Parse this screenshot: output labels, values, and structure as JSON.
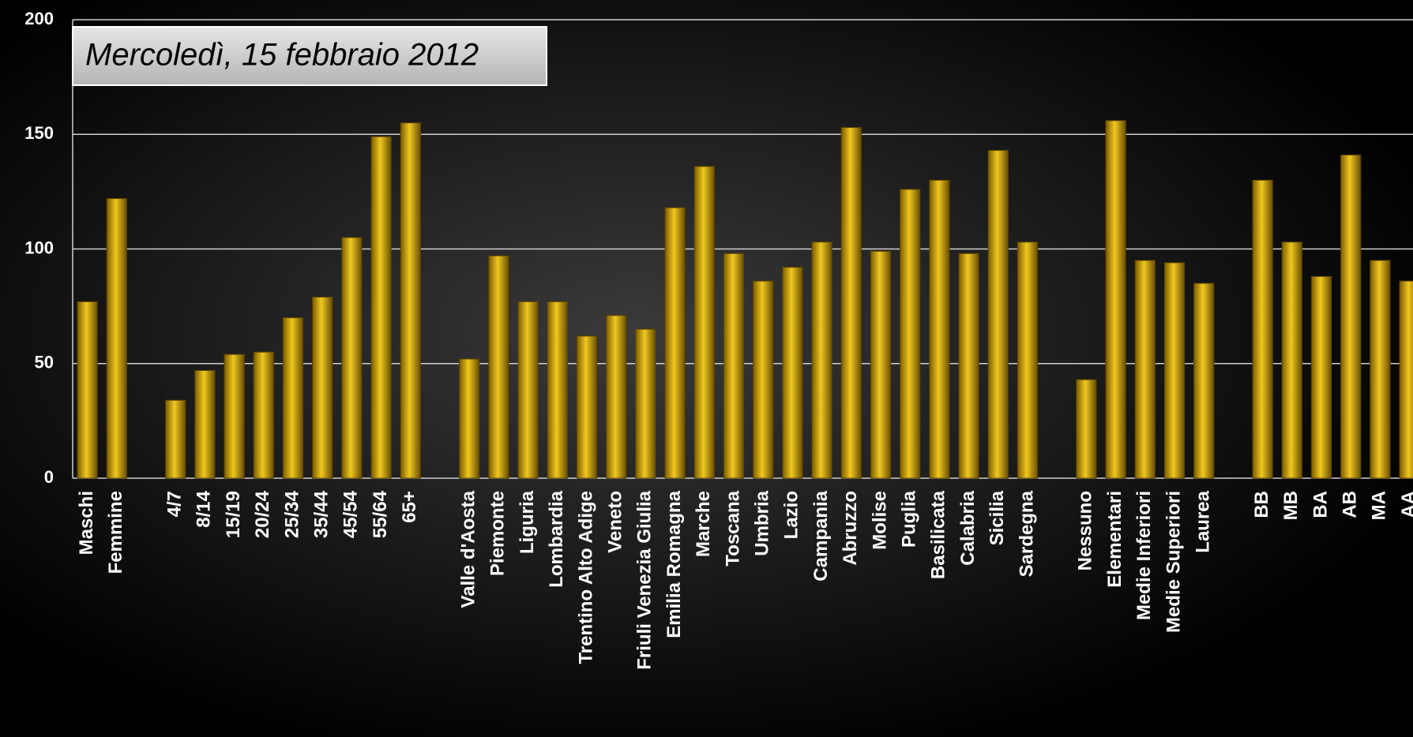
{
  "chart_data": {
    "type": "bar",
    "title": "Mercoledì, 15 febbraio 2012",
    "categories": [
      "Maschi",
      "Femmine",
      null,
      "4/7",
      "8/14",
      "15/19",
      "20/24",
      "25/34",
      "35/44",
      "45/54",
      "55/64",
      "65+",
      null,
      "Valle d'Aosta",
      "Piemonte",
      "Liguria",
      "Lombardia",
      "Trentino Alto Adige",
      "Veneto",
      "Friuli Venezia Giulia",
      "Emilia Romagna",
      "Marche",
      "Toscana",
      "Umbria",
      "Lazio",
      "Campania",
      "Abruzzo",
      "Molise",
      "Puglia",
      "Basilicata",
      "Calabria",
      "Sicilia",
      "Sardegna",
      null,
      "Nessuno",
      "Elementari",
      "Medie Inferiori",
      "Medie Superiori",
      "Laurea",
      null,
      "BB",
      "MB",
      "BA",
      "AB",
      "MA",
      "AA"
    ],
    "values": [
      77,
      122,
      null,
      34,
      47,
      54,
      55,
      70,
      79,
      105,
      149,
      155,
      null,
      52,
      97,
      77,
      77,
      62,
      71,
      65,
      118,
      136,
      98,
      86,
      92,
      103,
      153,
      99,
      126,
      130,
      98,
      143,
      103,
      null,
      43,
      156,
      95,
      94,
      85,
      null,
      130,
      103,
      88,
      141,
      95,
      86
    ],
    "color": "#c49a00",
    "ylim": [
      0,
      200
    ],
    "yticks": [
      0,
      50,
      100,
      150,
      200
    ],
    "grid": true
  }
}
